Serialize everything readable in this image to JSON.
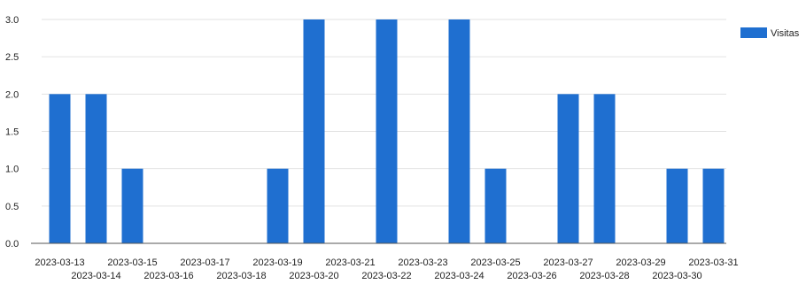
{
  "chart_data": {
    "type": "bar",
    "categories": [
      "2023-03-13",
      "2023-03-14",
      "2023-03-15",
      "2023-03-16",
      "2023-03-17",
      "2023-03-18",
      "2023-03-19",
      "2023-03-20",
      "2023-03-21",
      "2023-03-22",
      "2023-03-23",
      "2023-03-24",
      "2023-03-25",
      "2023-03-26",
      "2023-03-27",
      "2023-03-28",
      "2023-03-29",
      "2023-03-30",
      "2023-03-31"
    ],
    "series": [
      {
        "name": "Visitas",
        "color": "#1f6fd0",
        "values": [
          2,
          2,
          1,
          0,
          0,
          0,
          1,
          3,
          0,
          3,
          0,
          3,
          1,
          0,
          2,
          2,
          0,
          1,
          1
        ]
      }
    ],
    "yticks": [
      "0.0",
      "0.5",
      "1.0",
      "1.5",
      "2.0",
      "2.5",
      "3.0"
    ],
    "ylim": [
      0,
      3
    ],
    "grid": true,
    "gridlines": "horizontal",
    "legend_position": "top-right",
    "title": "",
    "xlabel": "",
    "ylabel": ""
  }
}
